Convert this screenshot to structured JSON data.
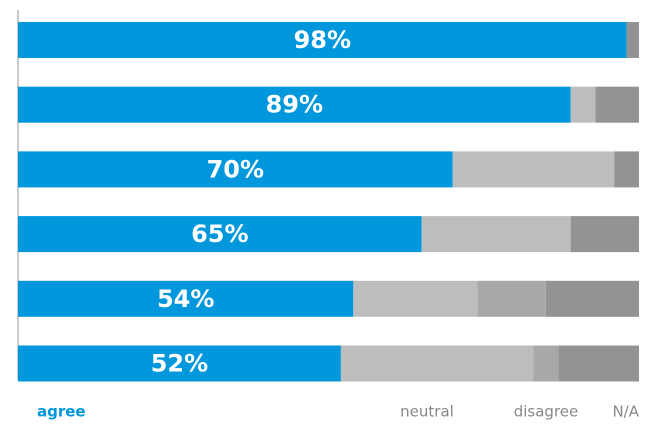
{
  "chart_data": {
    "type": "stacked-bar-horizontal",
    "categories": [
      null,
      null,
      null,
      null,
      null,
      null
    ],
    "series": [
      {
        "name": "agree",
        "color": "#0097dc",
        "values": [
          98,
          89,
          70,
          65,
          54,
          52
        ],
        "value_labels": [
          "98%",
          "89%",
          "70%",
          "65%",
          "54%",
          "52%"
        ]
      },
      {
        "name": "neutral",
        "color": "#bcbdbf",
        "values": [
          0,
          4,
          26,
          24,
          20,
          31
        ]
      },
      {
        "name": "disagree",
        "color": "#a7a8aa",
        "values": [
          0,
          0,
          0,
          0,
          11,
          4
        ]
      },
      {
        "name": "N/A",
        "color": "#929395",
        "values": [
          2,
          7,
          4,
          11,
          15,
          13
        ]
      }
    ],
    "xlim": [
      0,
      100
    ]
  }
}
